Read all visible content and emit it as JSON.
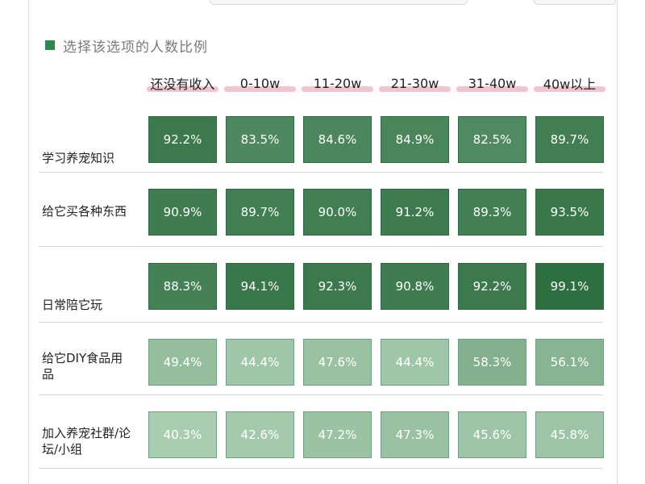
{
  "legend": {
    "label": "选择该选项的人数比例",
    "color": "#2f8a4e"
  },
  "chart_data": {
    "type": "heatmap",
    "title": "",
    "columns": [
      "还没有收入",
      "0-10w",
      "11-20w",
      "21-30w",
      "31-40w",
      "40w以上"
    ],
    "rows": [
      {
        "label": "学习养宠知识",
        "values": [
          92.2,
          83.5,
          84.6,
          84.9,
          82.5,
          89.7
        ]
      },
      {
        "label": "给它买各种东西",
        "values": [
          90.9,
          89.7,
          90.0,
          91.2,
          89.3,
          93.5
        ]
      },
      {
        "label": "日常陪它玩",
        "values": [
          88.3,
          94.1,
          92.3,
          90.8,
          92.2,
          99.1
        ]
      },
      {
        "label": "给它DIY食品用品",
        "values": [
          49.4,
          44.4,
          47.6,
          44.4,
          58.3,
          56.1
        ]
      },
      {
        "label": "加入养宠社群/论坛/小组",
        "values": [
          40.3,
          42.6,
          47.2,
          47.3,
          45.6,
          45.8
        ]
      }
    ],
    "value_format": "percent_1dp",
    "color_scale": {
      "low": "#a9cdb1",
      "high": "#2c6e3e",
      "min": 40,
      "max": 100
    }
  }
}
